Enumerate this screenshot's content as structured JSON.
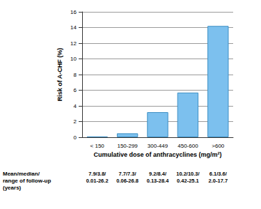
{
  "chart_data": {
    "type": "bar",
    "y_label": "Risk of A-CHF (%)",
    "x_label": "Cumulative dose of anthracyclines (mg/m²)",
    "categories": [
      "< 150",
      "150-299",
      "300-449",
      "450-600",
      ">600"
    ],
    "values": [
      0.1,
      0.5,
      3.2,
      5.7,
      14.2
    ],
    "color": "#7cc0ee",
    "ylim": [
      0,
      16
    ],
    "yticks": [
      0,
      2,
      4,
      6,
      8,
      10,
      12,
      14,
      16
    ],
    "grid": true,
    "follow_up_label": "Mean/median/\nrange of follow-up\n(years)",
    "follow_up_values": [
      "7.9/3.8/\n0.01-26.2",
      "7.7/7.3/\n0.06-26.8",
      "9.2/8.4/\n0.13-28.4",
      "10.2/10.3/\n0.42-25.1",
      "6.1/3.6/\n2.0-17.7"
    ]
  }
}
